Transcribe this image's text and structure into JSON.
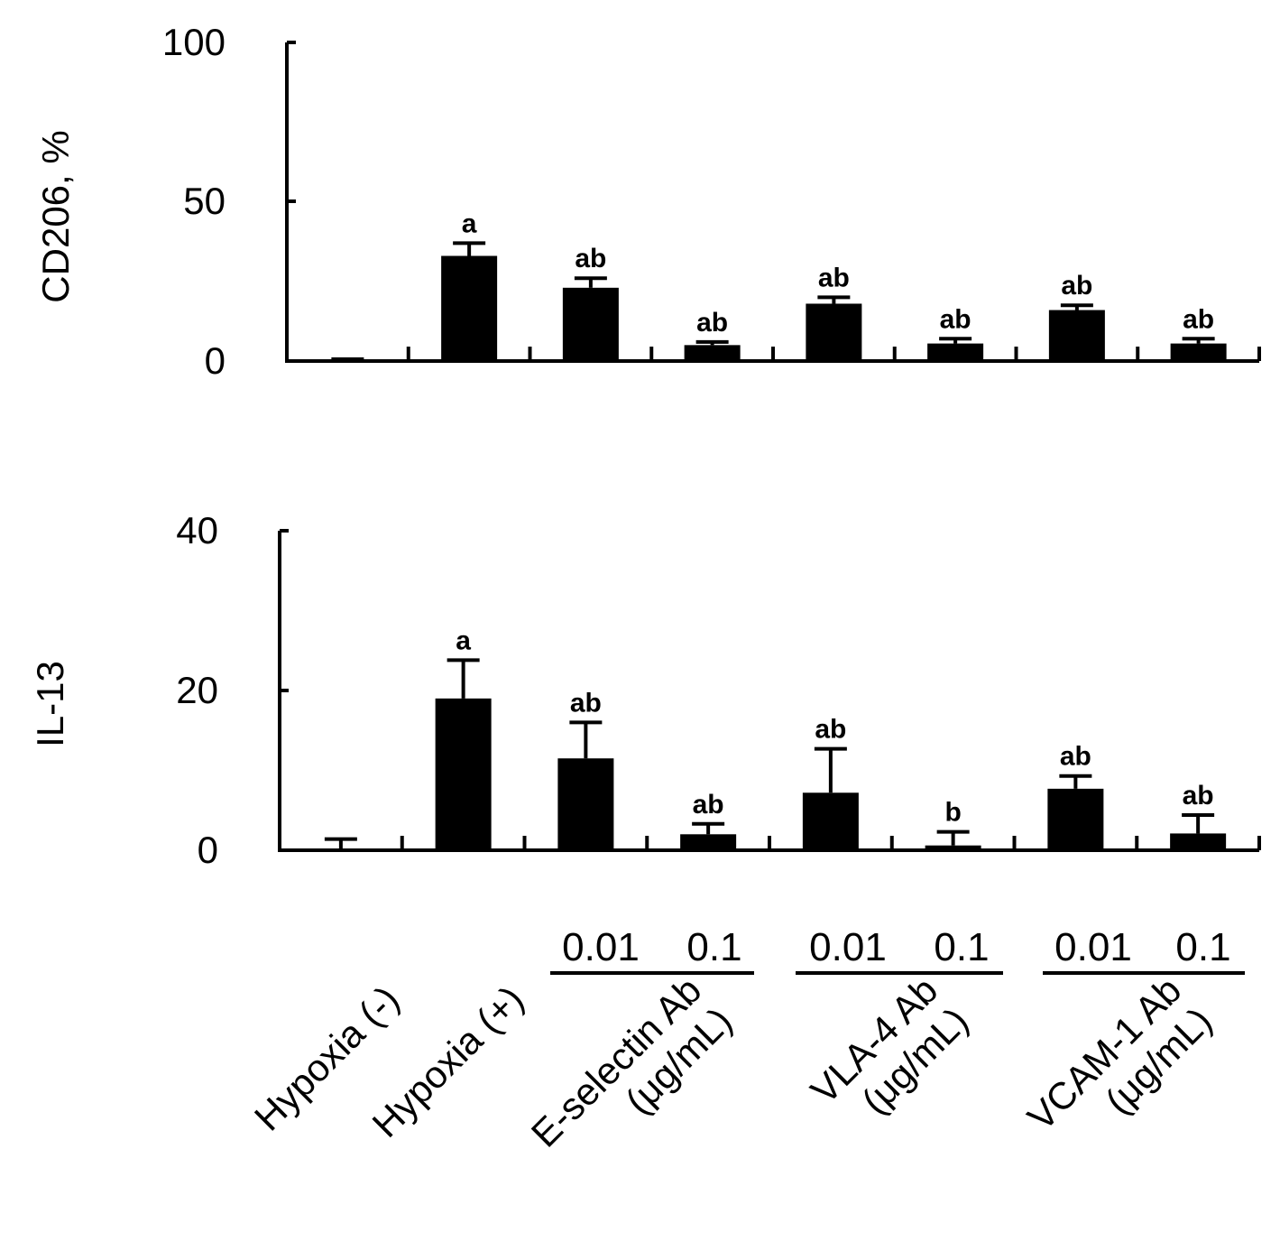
{
  "chart_data": [
    {
      "type": "bar",
      "ylabel": "CD206, %",
      "ylim": [
        0,
        100
      ],
      "yticks": [
        "0",
        "50",
        "100"
      ],
      "series": [
        {
          "name": "CD206",
          "values": [
            0.3,
            33,
            23,
            5,
            18,
            5.5,
            16,
            5.5
          ],
          "errors": [
            0.3,
            4,
            3,
            1,
            2,
            1.5,
            1.5,
            1.5
          ]
        }
      ],
      "annotations": [
        "",
        "a",
        "ab",
        "ab",
        "ab",
        "ab",
        "ab",
        "ab"
      ]
    },
    {
      "type": "bar",
      "ylabel": "IL-13",
      "ylim": [
        0,
        40
      ],
      "yticks": [
        "0",
        "20",
        "40"
      ],
      "series": [
        {
          "name": "IL-13",
          "values": [
            0,
            19,
            11.5,
            2,
            7.2,
            0.6,
            7.7,
            2.1
          ],
          "errors": [
            1.4,
            4.8,
            4.5,
            1.3,
            5.5,
            1.7,
            1.6,
            2.3
          ]
        }
      ],
      "annotations": [
        "",
        "a",
        "ab",
        "ab",
        "ab",
        "b",
        "ab",
        "ab"
      ]
    }
  ],
  "x_axis": {
    "concentrations": [
      "0.01",
      "0.1",
      "0.01",
      "0.1",
      "0.01",
      "0.1"
    ],
    "groups": [
      {
        "lines": [
          "Hypoxia (-)"
        ]
      },
      {
        "lines": [
          "Hypoxia (+)"
        ]
      },
      {
        "lines": [
          "E-selectin Ab",
          "(μg/mL)"
        ]
      },
      {
        "lines": [
          "VLA-4 Ab",
          "(μg/mL)"
        ]
      },
      {
        "lines": [
          "VCAM-1 Ab",
          "(μg/mL)"
        ]
      }
    ]
  }
}
